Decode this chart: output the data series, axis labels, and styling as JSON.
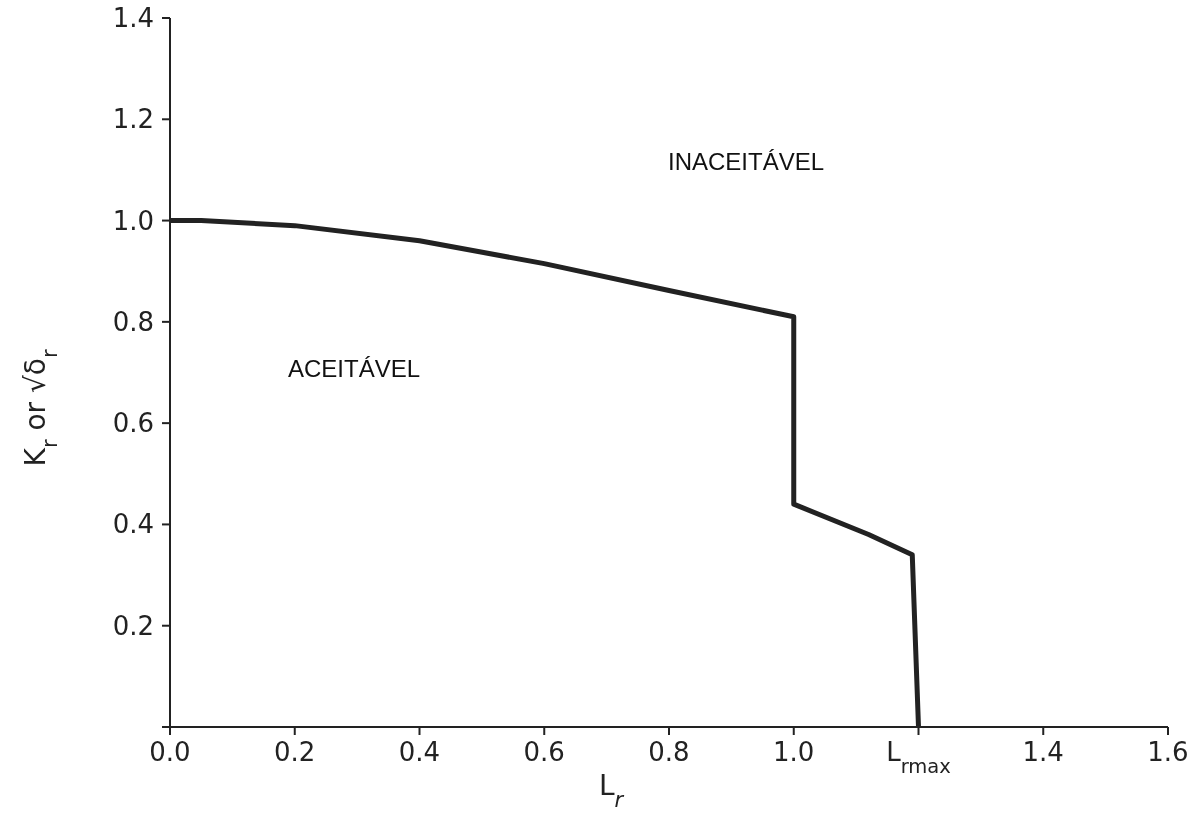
{
  "chart_data": {
    "type": "line",
    "xlabel": "L$_{r}$",
    "ylabel": "K$_{r}$ or √δ$_{r}$",
    "x": [
      0,
      0.05,
      0.2,
      0.4,
      0.6,
      0.8,
      1.0,
      1.0,
      1.12,
      1.19,
      1.2
    ],
    "series": [
      {
        "color": "#222222",
        "values": [
          1.0,
          1.0,
          0.99,
          0.96,
          0.915,
          0.862,
          0.81,
          0.44,
          0.38,
          0.34,
          0
        ]
      }
    ],
    "xlim": [
      0,
      1.6
    ],
    "ylim": [
      0,
      1.4
    ],
    "xticks": [
      {
        "value": 0,
        "label": "0.0"
      },
      0.2,
      0.4,
      0.6,
      0.8,
      {
        "value": 1,
        "label": "1.0"
      },
      {
        "value": 1.2,
        "label": "L$_{rmax}$"
      },
      1.4,
      1.6
    ],
    "yticks": [
      {
        "value": 0,
        "label": null
      },
      0.2,
      0.4,
      0.6,
      0.8,
      {
        "value": 1,
        "label": "1.0"
      },
      1.2,
      1.4
    ],
    "annotations": [
      "INACEITÁVEL",
      "ACEITÁVEL"
    ],
    "grid": false,
    "legend": false
  }
}
